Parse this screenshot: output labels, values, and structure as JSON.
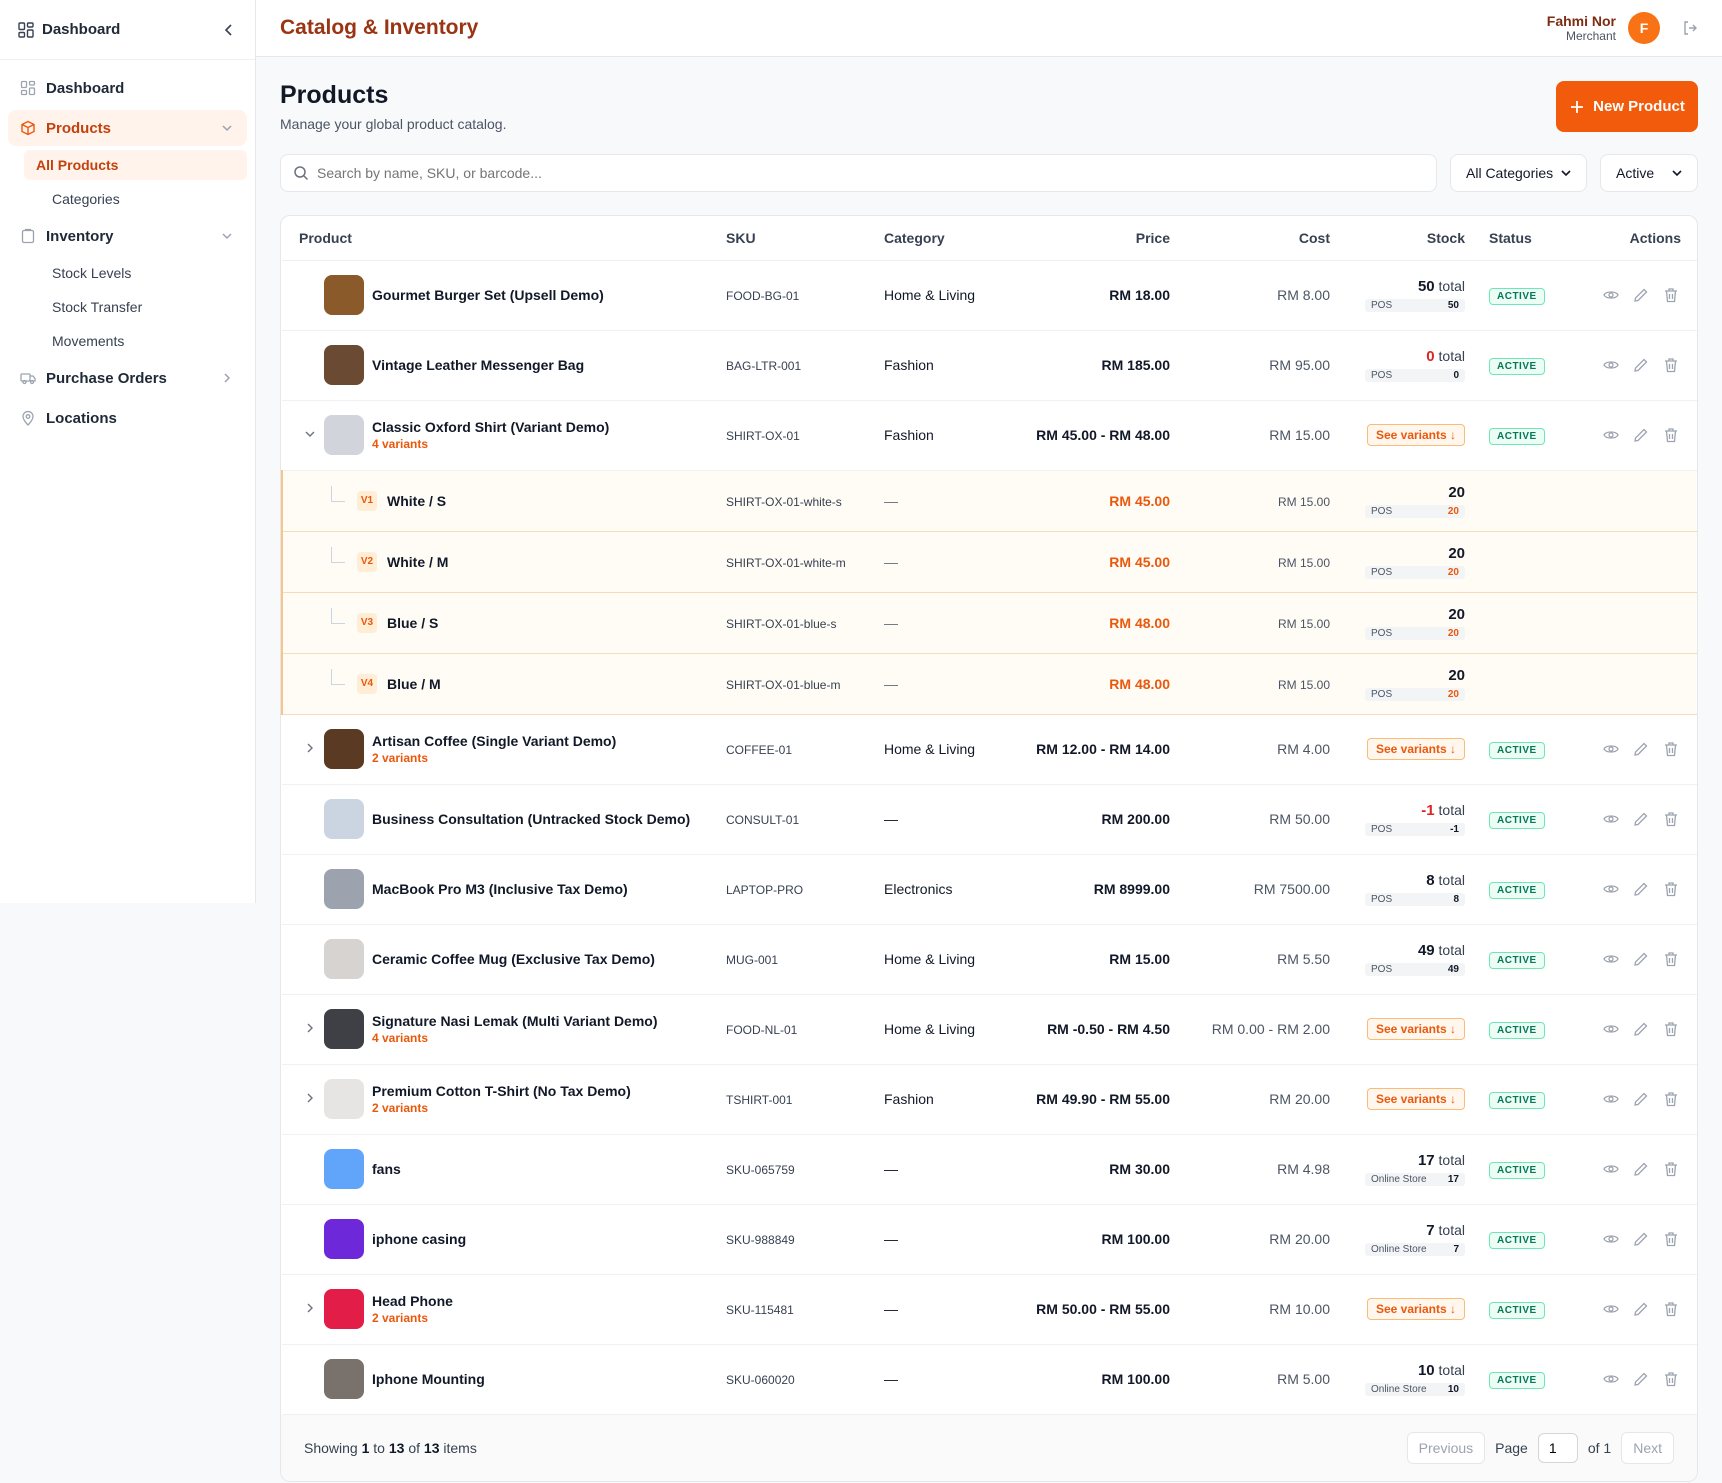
{
  "sidebar": {
    "header_title": "Dashboard",
    "items": [
      {
        "label": "Dashboard"
      },
      {
        "label": "Products"
      },
      {
        "label": "All Products"
      },
      {
        "label": "Categories"
      },
      {
        "label": "Inventory"
      },
      {
        "label": "Stock Levels"
      },
      {
        "label": "Stock Transfer"
      },
      {
        "label": "Movements"
      },
      {
        "label": "Purchase Orders"
      },
      {
        "label": "Locations"
      }
    ]
  },
  "topbar": {
    "brand": "Catalog & Inventory",
    "user_name": "Fahmi Nor",
    "user_role": "Merchant",
    "avatar_initial": "F"
  },
  "page": {
    "title": "Products",
    "subtitle": "Manage your global product catalog.",
    "new_button": "New Product"
  },
  "filters": {
    "search_placeholder": "Search by name, SKU, or barcode...",
    "category": "All Categories",
    "status": "Active"
  },
  "table": {
    "headers": [
      "Product",
      "SKU",
      "Category",
      "Price",
      "Cost",
      "Stock",
      "Status",
      "Actions"
    ],
    "total_word": "total",
    "see_variants": "See variants ↓",
    "status_active": "ACTIVE",
    "products": [
      {
        "name": "Gourmet Burger Set (Upsell Demo)",
        "sku": "FOOD-BG-01",
        "category": "Home & Living",
        "price": "RM 18.00",
        "cost": "RM 8.00",
        "stock": "50",
        "loc": "POS",
        "loc_qty": "50"
      },
      {
        "name": "Vintage Leather Messenger Bag",
        "sku": "BAG-LTR-001",
        "category": "Fashion",
        "price": "RM 185.00",
        "cost": "RM 95.00",
        "stock": "0",
        "loc": "POS",
        "loc_qty": "0"
      },
      {
        "name": "Classic Oxford Shirt (Variant Demo)",
        "variants": "4 variants",
        "sku": "SHIRT-OX-01",
        "category": "Fashion",
        "price": "RM 45.00 - RM 48.00",
        "cost": "RM 15.00"
      },
      {
        "name": "Artisan Coffee (Single Variant Demo)",
        "variants": "2 variants",
        "sku": "COFFEE-01",
        "category": "Home & Living",
        "price": "RM 12.00 - RM 14.00",
        "cost": "RM 4.00"
      },
      {
        "name": "Business Consultation (Untracked Stock Demo)",
        "sku": "CONSULT-01",
        "category": "—",
        "price": "RM 200.00",
        "cost": "RM 50.00",
        "stock": "-1",
        "loc": "POS",
        "loc_qty": "-1"
      },
      {
        "name": "MacBook Pro M3 (Inclusive Tax Demo)",
        "sku": "LAPTOP-PRO",
        "category": "Electronics",
        "price": "RM 8999.00",
        "cost": "RM 7500.00",
        "stock": "8",
        "loc": "POS",
        "loc_qty": "8"
      },
      {
        "name": "Ceramic Coffee Mug (Exclusive Tax Demo)",
        "sku": "MUG-001",
        "category": "Home & Living",
        "price": "RM 15.00",
        "cost": "RM 5.50",
        "stock": "49",
        "loc": "POS",
        "loc_qty": "49"
      },
      {
        "name": "Signature Nasi Lemak (Multi Variant Demo)",
        "variants": "4 variants",
        "sku": "FOOD-NL-01",
        "category": "Home & Living",
        "price": "RM -0.50 - RM 4.50",
        "cost": "RM 0.00 - RM 2.00"
      },
      {
        "name": "Premium Cotton T-Shirt (No Tax Demo)",
        "variants": "2 variants",
        "sku": "TSHIRT-001",
        "category": "Fashion",
        "price": "RM 49.90 - RM 55.00",
        "cost": "RM 20.00"
      },
      {
        "name": "fans",
        "sku": "SKU-065759",
        "category": "—",
        "price": "RM 30.00",
        "cost": "RM 4.98",
        "stock": "17",
        "loc": "Online Store",
        "loc_qty": "17"
      },
      {
        "name": "iphone casing",
        "sku": "SKU-988849",
        "category": "—",
        "price": "RM 100.00",
        "cost": "RM 20.00",
        "stock": "7",
        "loc": "Online Store",
        "loc_qty": "7"
      },
      {
        "name": "Head Phone",
        "variants": "2 variants",
        "sku": "SKU-115481",
        "category": "—",
        "price": "RM 50.00 - RM 55.00",
        "cost": "RM 10.00"
      },
      {
        "name": "Iphone Mounting",
        "sku": "SKU-060020",
        "category": "—",
        "price": "RM 100.00",
        "cost": "RM 5.00",
        "stock": "10",
        "loc": "Online Store",
        "loc_qty": "10"
      }
    ],
    "shirt_variants": [
      {
        "badge": "V1",
        "name": "White / S",
        "sku": "SHIRT-OX-01-white-s",
        "category": "—",
        "price": "RM 45.00",
        "cost": "RM 15.00",
        "stock": "20",
        "loc": "POS",
        "loc_qty": "20"
      },
      {
        "badge": "V2",
        "name": "White / M",
        "sku": "SHIRT-OX-01-white-m",
        "category": "—",
        "price": "RM 45.00",
        "cost": "RM 15.00",
        "stock": "20",
        "loc": "POS",
        "loc_qty": "20"
      },
      {
        "badge": "V3",
        "name": "Blue / S",
        "sku": "SHIRT-OX-01-blue-s",
        "category": "—",
        "price": "RM 48.00",
        "cost": "RM 15.00",
        "stock": "20",
        "loc": "POS",
        "loc_qty": "20"
      },
      {
        "badge": "V4",
        "name": "Blue / M",
        "sku": "SHIRT-OX-01-blue-m",
        "category": "—",
        "price": "RM 48.00",
        "cost": "RM 15.00",
        "stock": "20",
        "loc": "POS",
        "loc_qty": "20"
      }
    ]
  },
  "footer": {
    "showing": "Showing",
    "from": "1",
    "to_word": "to",
    "to": "13",
    "of_word": "of",
    "total": "13",
    "items_word": "items",
    "previous": "Previous",
    "page_word": "Page",
    "page_value": "1",
    "of_pages": "of 1",
    "next": "Next"
  },
  "colors": {
    "accent": "#f25b0b",
    "brand": "#9a3412",
    "active_green": "#047857"
  }
}
